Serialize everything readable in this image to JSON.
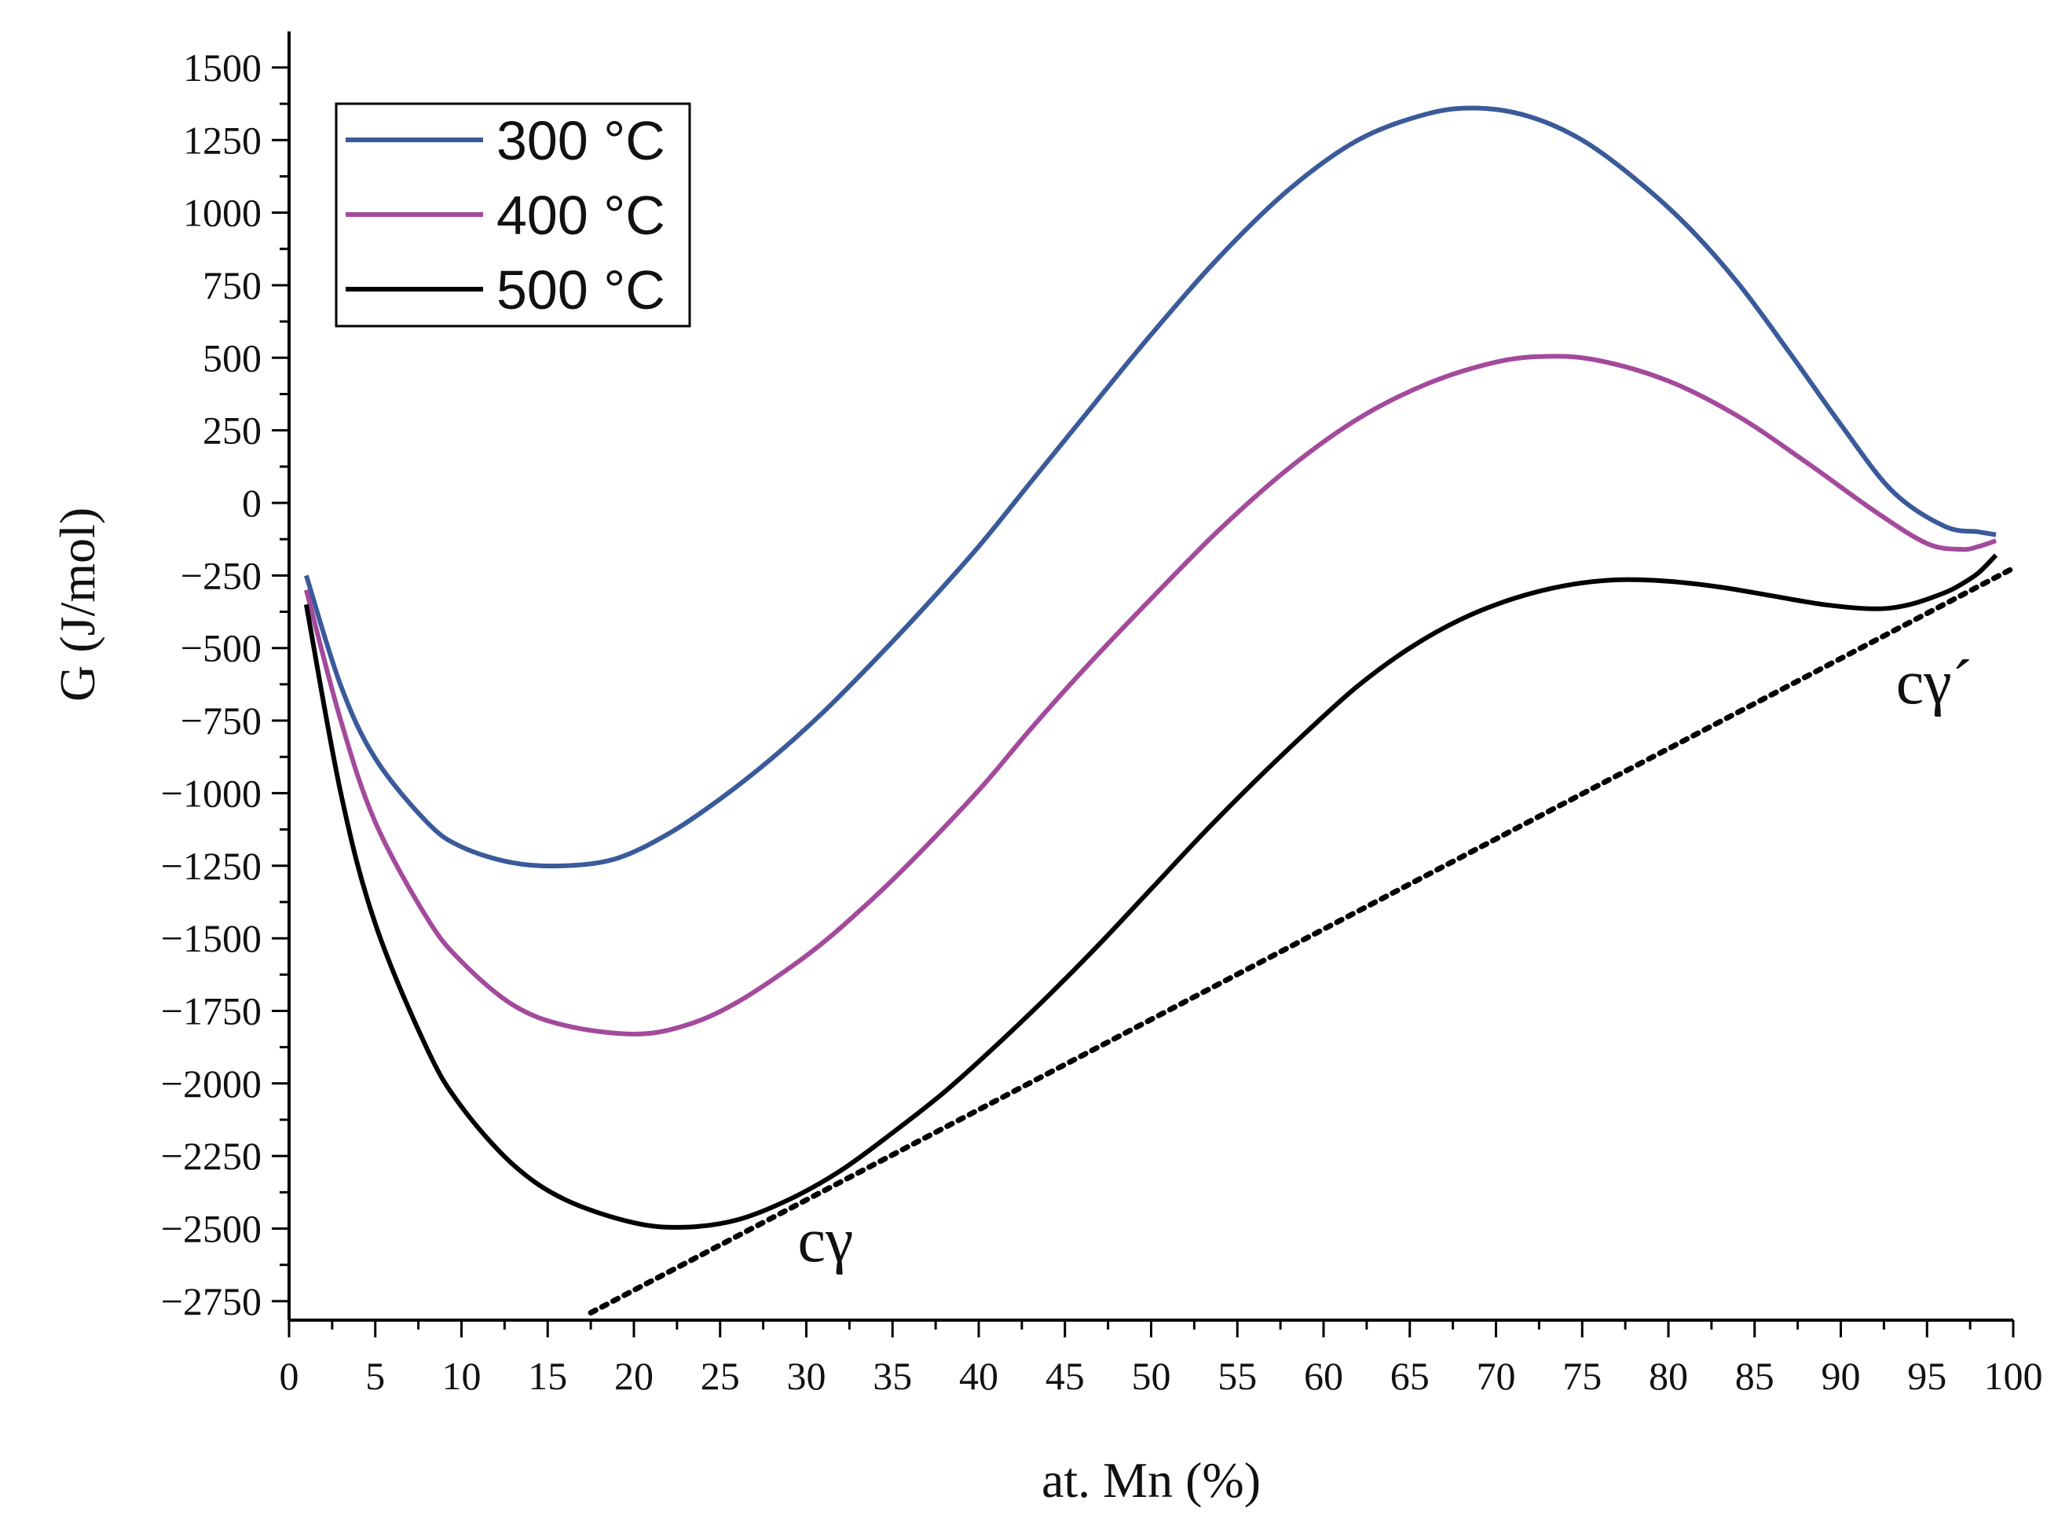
{
  "chart_data": {
    "type": "line",
    "title": "",
    "xlabel": "at. Mn (%)",
    "ylabel": "G  (J/mol)",
    "xlim": [
      0,
      100
    ],
    "ylim": [
      -2800,
      1600
    ],
    "xticks": [
      0,
      5,
      10,
      15,
      20,
      25,
      30,
      35,
      40,
      45,
      50,
      55,
      60,
      65,
      70,
      75,
      80,
      85,
      90,
      95,
      100
    ],
    "yticks": [
      -2750,
      -2500,
      -2250,
      -2000,
      -1750,
      -1500,
      -1250,
      -1000,
      -750,
      -500,
      -250,
      0,
      250,
      500,
      750,
      1000,
      1250,
      1500
    ],
    "xtick_labels": [
      "0",
      "5",
      "10",
      "15",
      "20",
      "25",
      "30",
      "35",
      "40",
      "45",
      "50",
      "55",
      "60",
      "65",
      "70",
      "75",
      "80",
      "85",
      "90",
      "95",
      "100"
    ],
    "ytick_labels": [
      "−2750",
      "−2500",
      "−2250",
      "−2000",
      "−1750",
      "−1500",
      "−1250",
      "−1000",
      "−750",
      "−500",
      "−250",
      "0",
      "250",
      "500",
      "750",
      "1000",
      "1250",
      "1500"
    ],
    "grid": false,
    "legend_position": "top-left",
    "series": [
      {
        "name": "300 °C",
        "color": "#3a5a9a",
        "x": [
          1,
          3,
          5,
          8,
          10,
          13,
          16,
          19,
          22,
          25,
          28,
          31,
          34,
          37,
          40,
          43,
          46,
          50,
          54,
          58,
          62,
          66,
          69,
          72,
          75,
          78,
          81,
          84,
          87,
          90,
          93,
          96,
          98,
          99
        ],
        "y": [
          -250,
          -630,
          -880,
          -1100,
          -1185,
          -1240,
          -1250,
          -1225,
          -1140,
          -1020,
          -880,
          -720,
          -540,
          -350,
          -150,
          70,
          290,
          580,
          850,
          1080,
          1250,
          1340,
          1360,
          1330,
          1250,
          1120,
          960,
          760,
          520,
          270,
          40,
          -80,
          -100,
          -110
        ]
      },
      {
        "name": "400 °C",
        "color": "#a34a9c",
        "x": [
          1,
          3,
          5,
          8,
          10,
          13,
          16,
          20,
          23,
          26,
          30,
          33,
          36,
          40,
          43,
          46,
          50,
          54,
          58,
          62,
          66,
          70,
          73,
          76,
          80,
          84,
          88,
          92,
          95,
          97,
          98,
          99
        ],
        "y": [
          -300,
          -750,
          -1100,
          -1430,
          -1580,
          -1730,
          -1800,
          -1830,
          -1800,
          -1720,
          -1560,
          -1410,
          -1240,
          -990,
          -780,
          -580,
          -330,
          -90,
          120,
          290,
          410,
          485,
          505,
          490,
          420,
          300,
          140,
          -30,
          -140,
          -160,
          -150,
          -130
        ]
      },
      {
        "name": "500 °C",
        "color": "#000000",
        "x": [
          1,
          3,
          5,
          8,
          10,
          13,
          16,
          20,
          23,
          26,
          29,
          32,
          35,
          38,
          41,
          44,
          47,
          50,
          53,
          56,
          59,
          62,
          65,
          68,
          71,
          74,
          77,
          80,
          83,
          86,
          89,
          92,
          94,
          96,
          97,
          98,
          99
        ],
        "y": [
          -350,
          -1000,
          -1450,
          -1880,
          -2080,
          -2280,
          -2400,
          -2480,
          -2495,
          -2470,
          -2400,
          -2300,
          -2170,
          -2030,
          -1870,
          -1700,
          -1520,
          -1330,
          -1140,
          -960,
          -790,
          -630,
          -500,
          -400,
          -330,
          -285,
          -265,
          -270,
          -290,
          -320,
          -350,
          -365,
          -350,
          -310,
          -280,
          -240,
          -180
        ]
      }
    ],
    "tangent_line": {
      "x": [
        17.5,
        100
      ],
      "y": [
        -2790,
        -225
      ],
      "style": "dotted",
      "color": "#000000"
    },
    "annotations": [
      {
        "text": "cγ",
        "x": 33,
        "y": -2560
      },
      {
        "text": "cγ´",
        "x": 96,
        "y": -690
      }
    ]
  }
}
